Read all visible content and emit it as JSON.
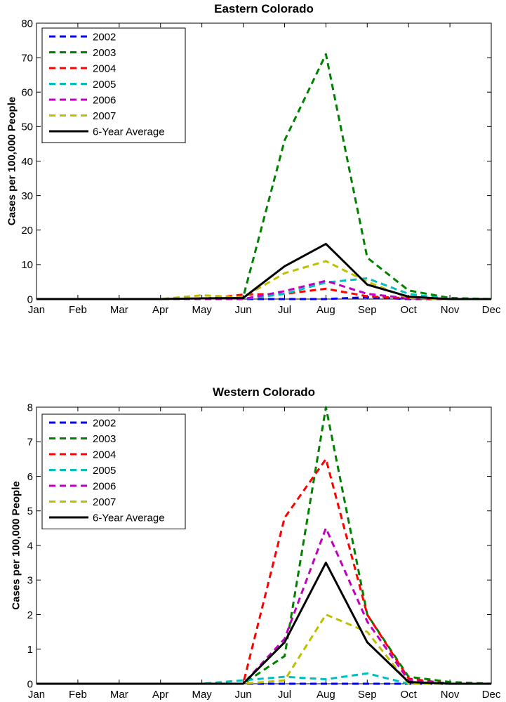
{
  "chart_data": [
    {
      "type": "line",
      "title": "Eastern Colorado",
      "xlabel": "",
      "ylabel": "Cases per 100,000 People",
      "categories": [
        "Jan",
        "Feb",
        "Mar",
        "Apr",
        "May",
        "Jun",
        "Jul",
        "Aug",
        "Sep",
        "Oct",
        "Nov",
        "Dec"
      ],
      "ylim": [
        0,
        80
      ],
      "yticks": [
        "0",
        "10",
        "20",
        "30",
        "40",
        "50",
        "60",
        "70",
        "80"
      ],
      "legend_position": "top-left",
      "series": [
        {
          "name": "2002",
          "style": "dashed",
          "color": "#0000ff",
          "values": [
            0,
            0,
            0,
            0,
            0,
            0,
            0,
            0,
            0.5,
            0,
            0,
            0
          ]
        },
        {
          "name": "2003",
          "style": "dashed",
          "color": "#008000",
          "values": [
            0,
            0,
            0,
            0,
            0,
            0.5,
            46,
            71,
            12,
            2.5,
            0.3,
            0
          ]
        },
        {
          "name": "2004",
          "style": "dashed",
          "color": "#ff0000",
          "values": [
            0,
            0,
            0,
            0,
            0,
            1.3,
            1.5,
            3,
            0.8,
            0.2,
            0,
            0
          ]
        },
        {
          "name": "2005",
          "style": "dashed",
          "color": "#00bfbf",
          "values": [
            0,
            0,
            0,
            0,
            0,
            0,
            1.5,
            4.8,
            6,
            1.5,
            0,
            0
          ]
        },
        {
          "name": "2006",
          "style": "dashed",
          "color": "#bf00bf",
          "values": [
            0,
            0,
            0,
            0,
            0,
            0,
            2.3,
            5.3,
            1.5,
            0.2,
            0,
            0
          ]
        },
        {
          "name": "2007",
          "style": "dashed",
          "color": "#bfbf00",
          "values": [
            0,
            0,
            0,
            0,
            1.1,
            0.5,
            7.5,
            11,
            5,
            0.3,
            0,
            0
          ]
        },
        {
          "name": "6-Year Average",
          "style": "solid",
          "color": "#000000",
          "values": [
            0,
            0,
            0,
            0,
            0.2,
            0.3,
            9.5,
            16,
            4.2,
            0.7,
            0,
            0
          ]
        }
      ]
    },
    {
      "type": "line",
      "title": "Western Colorado",
      "xlabel": "",
      "ylabel": "Cases per 100,000 People",
      "categories": [
        "Jan",
        "Feb",
        "Mar",
        "Apr",
        "May",
        "Jun",
        "Jul",
        "Aug",
        "Sep",
        "Oct",
        "Nov",
        "Dec"
      ],
      "ylim": [
        0,
        8
      ],
      "yticks": [
        "0",
        "1",
        "2",
        "3",
        "4",
        "5",
        "6",
        "7",
        "8"
      ],
      "legend_position": "top-left",
      "series": [
        {
          "name": "2002",
          "style": "dashed",
          "color": "#0000ff",
          "values": [
            0,
            0,
            0,
            0,
            0,
            0,
            0,
            0,
            0,
            0,
            0,
            0
          ]
        },
        {
          "name": "2003",
          "style": "dashed",
          "color": "#008000",
          "values": [
            0,
            0,
            0,
            0,
            0,
            0,
            0.8,
            8,
            2,
            0.2,
            0.05,
            0
          ]
        },
        {
          "name": "2004",
          "style": "dashed",
          "color": "#ff0000",
          "values": [
            0,
            0,
            0,
            0,
            0,
            0,
            4.8,
            6.5,
            2,
            0.15,
            0,
            0
          ]
        },
        {
          "name": "2005",
          "style": "dashed",
          "color": "#00bfbf",
          "values": [
            0,
            0,
            0,
            0,
            0,
            0.1,
            0.2,
            0.13,
            0.3,
            0,
            0,
            0
          ]
        },
        {
          "name": "2006",
          "style": "dashed",
          "color": "#bf00bf",
          "values": [
            0,
            0,
            0,
            0,
            0,
            0,
            1.3,
            4.5,
            1.8,
            0.1,
            0,
            0
          ]
        },
        {
          "name": "2007",
          "style": "dashed",
          "color": "#bfbf00",
          "values": [
            0,
            0,
            0,
            0,
            0,
            0,
            0.1,
            2,
            1.5,
            0,
            0,
            0
          ]
        },
        {
          "name": "6-Year Average",
          "style": "solid",
          "color": "#000000",
          "values": [
            0,
            0,
            0,
            0,
            0,
            0,
            1.2,
            3.5,
            1.2,
            0.05,
            0,
            0
          ]
        }
      ]
    }
  ]
}
